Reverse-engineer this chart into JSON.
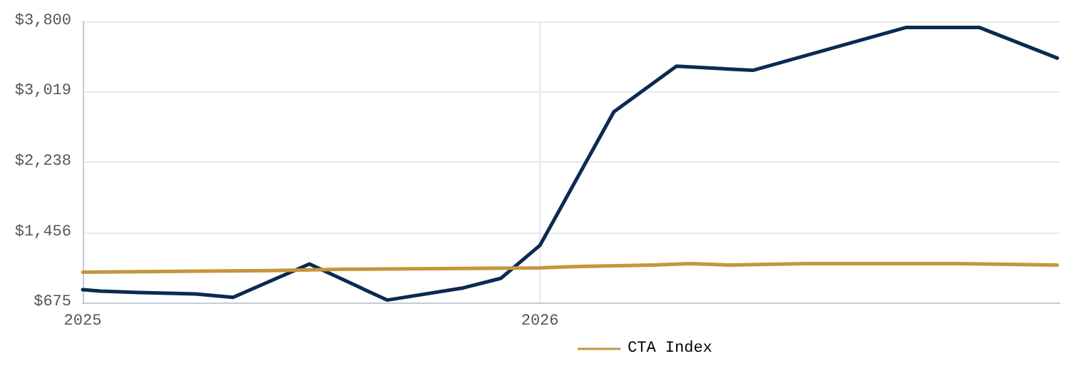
{
  "chart_data": {
    "type": "line",
    "xlim": [
      "2025-01-01",
      "2027-02-20"
    ],
    "xticks": [
      "2025",
      "2026"
    ],
    "ylim": [
      675,
      3800
    ],
    "yticks": [
      {
        "value": 675,
        "label": "$675"
      },
      {
        "value": 1456,
        "label": "$1,456"
      },
      {
        "value": 2238,
        "label": "$2,238"
      },
      {
        "value": 3019,
        "label": "$3,019"
      },
      {
        "value": 3800,
        "label": "$3,800"
      }
    ],
    "grid": true,
    "legend": "bottom",
    "marker": "none",
    "line_style": "solid",
    "series": [
      {
        "color": "#0c2a52",
        "x": [
          "2025-01-01",
          "2025-01-15",
          "2025-02-15",
          "2025-04-01",
          "2025-05-01",
          "2025-07-01",
          "2025-09-01",
          "2025-11-01",
          "2025-12-01",
          "2026-01-01",
          "2026-03-01",
          "2026-04-20",
          "2026-06-20",
          "2026-10-20",
          "2026-12-18",
          "2027-02-18"
        ],
        "values": [
          818,
          802,
          786,
          770,
          733,
          1103,
          702,
          838,
          945,
          1310,
          2795,
          3303,
          3256,
          3732,
          3732,
          3392
        ]
      },
      {
        "name": "CTA Index",
        "color": "#c4973c",
        "x": [
          "2025-01-01",
          "2025-06-01",
          "2025-08-01",
          "2026-01-01",
          "2026-02-01",
          "2026-04-01",
          "2026-05-01",
          "2026-06-01",
          "2026-08-01",
          "2026-12-01",
          "2027-02-18"
        ],
        "values": [
          1013,
          1029,
          1045,
          1060,
          1076,
          1092,
          1107,
          1092,
          1107,
          1107,
          1092
        ]
      }
    ]
  }
}
